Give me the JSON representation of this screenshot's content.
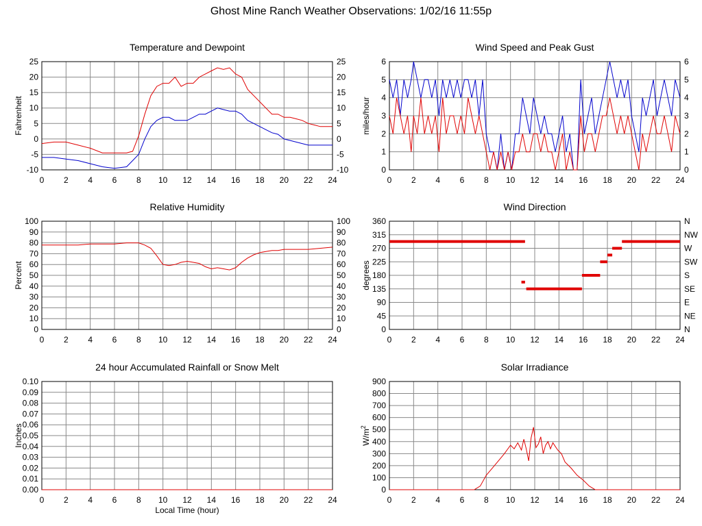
{
  "page": {
    "title": "Ghost Mine Ranch Weather Observations: 1/02/16 11:55p"
  },
  "colors": {
    "red": "#e00000",
    "blue": "#0000cc",
    "grid": "#888888",
    "frame": "#000000"
  },
  "chart_data": [
    {
      "id": "temperature",
      "type": "line",
      "title": "Temperature and Dewpoint",
      "xlabel": "",
      "ylabel": "Fahrenheit",
      "xlim": [
        0,
        24
      ],
      "ylim": [
        -10,
        25
      ],
      "xticks": [
        "0",
        "2",
        "4",
        "6",
        "8",
        "10",
        "12",
        "14",
        "16",
        "18",
        "20",
        "22",
        "24"
      ],
      "yticks": [
        "-10",
        "-5",
        "0",
        "5",
        "10",
        "15",
        "20",
        "25"
      ],
      "right_yticks": [
        "-10",
        "-5",
        "0",
        "5",
        "10",
        "15",
        "20",
        "25"
      ],
      "series": [
        {
          "color": "#e00000",
          "x": [
            0,
            1,
            2,
            3,
            4,
            5,
            6,
            7,
            7.5,
            8,
            8.5,
            9,
            9.5,
            10,
            10.5,
            11,
            11.5,
            12,
            12.5,
            13,
            13.5,
            14,
            14.5,
            15,
            15.5,
            16,
            16.5,
            17,
            17.5,
            18,
            18.5,
            19,
            19.5,
            20,
            20.5,
            21,
            21.5,
            22,
            22.5,
            23,
            23.5,
            24
          ],
          "values": [
            -1.5,
            -1,
            -1,
            -2,
            -3,
            -4.5,
            -4.5,
            -4.5,
            -4,
            1,
            8,
            14,
            17,
            18,
            18,
            20,
            17,
            18,
            18,
            20,
            21,
            22,
            23,
            22.5,
            23,
            21,
            20,
            16,
            14,
            12,
            10,
            8,
            8,
            7,
            7,
            6.5,
            6,
            5,
            4.5,
            4,
            4,
            4
          ]
        },
        {
          "color": "#0000cc",
          "x": [
            0,
            1,
            2,
            3,
            4,
            5,
            6,
            7,
            7.5,
            8,
            8.5,
            9,
            9.5,
            10,
            10.5,
            11,
            11.5,
            12,
            12.5,
            13,
            13.5,
            14,
            14.5,
            15,
            15.5,
            16,
            16.5,
            17,
            17.5,
            18,
            18.5,
            19,
            19.5,
            20,
            20.5,
            21,
            21.5,
            22,
            22.5,
            23,
            23.5,
            24
          ],
          "values": [
            -6,
            -6,
            -6.5,
            -7,
            -8,
            -9,
            -9.5,
            -9,
            -7,
            -5,
            0,
            4,
            6,
            7,
            7,
            6,
            6,
            6,
            7,
            8,
            8,
            9,
            10,
            9.5,
            9,
            9,
            8,
            6,
            5,
            4,
            3,
            2,
            1.5,
            0,
            -0.5,
            -1,
            -1.5,
            -2,
            -2,
            -2,
            -2,
            -2
          ]
        }
      ]
    },
    {
      "id": "wind-speed",
      "type": "line",
      "title": "Wind Speed and Peak Gust",
      "xlabel": "",
      "ylabel": "miles/hour",
      "xlim": [
        0,
        24
      ],
      "ylim": [
        0,
        6
      ],
      "xticks": [
        "0",
        "2",
        "4",
        "6",
        "8",
        "10",
        "12",
        "14",
        "16",
        "18",
        "20",
        "22",
        "24"
      ],
      "yticks": [
        "0",
        "1",
        "2",
        "3",
        "4",
        "5",
        "6"
      ],
      "right_yticks": [
        "0",
        "1",
        "2",
        "3",
        "4",
        "5",
        "6"
      ],
      "series": [
        {
          "color": "#0000cc",
          "x": [
            0,
            0.3,
            0.6,
            0.9,
            1.2,
            1.5,
            1.8,
            2,
            2.3,
            2.6,
            2.9,
            3.2,
            3.5,
            3.8,
            4.1,
            4.4,
            4.7,
            5,
            5.3,
            5.6,
            5.9,
            6.2,
            6.5,
            6.8,
            7.1,
            7.4,
            7.7,
            8,
            8.3,
            8.6,
            8.9,
            9.2,
            9.5,
            9.8,
            10.1,
            10.4,
            10.7,
            11,
            11.3,
            11.6,
            11.9,
            12.2,
            12.5,
            12.8,
            13.1,
            13.4,
            13.7,
            14,
            14.3,
            14.6,
            14.9,
            15.2,
            15.5,
            15.8,
            16.1,
            16.4,
            16.7,
            17,
            17.3,
            17.6,
            17.9,
            18.2,
            18.5,
            18.8,
            19.1,
            19.4,
            19.7,
            20,
            20.3,
            20.6,
            20.9,
            21.2,
            21.5,
            21.8,
            22.1,
            22.4,
            22.7,
            23,
            23.3,
            23.6,
            24
          ],
          "values": [
            5,
            4,
            5,
            3,
            5,
            4,
            5,
            6,
            5,
            4,
            5,
            5,
            4,
            5,
            3,
            5,
            4,
            5,
            4,
            5,
            4,
            5,
            5,
            4,
            5,
            3,
            5,
            2,
            1,
            1,
            0,
            2,
            0,
            1,
            0,
            2,
            2,
            4,
            3,
            2,
            4,
            3,
            2,
            3,
            2,
            2,
            1,
            2,
            3,
            1,
            2,
            0,
            0,
            5,
            2,
            3,
            4,
            2,
            3,
            4,
            5,
            6,
            5,
            4,
            5,
            4,
            5,
            3,
            2,
            1,
            4,
            3,
            4,
            5,
            3,
            4,
            5,
            4,
            3,
            5,
            4
          ]
        },
        {
          "color": "#e00000",
          "x": [
            0,
            0.3,
            0.6,
            0.9,
            1.2,
            1.5,
            1.8,
            2,
            2.3,
            2.6,
            2.9,
            3.2,
            3.5,
            3.8,
            4.1,
            4.4,
            4.7,
            5,
            5.3,
            5.6,
            5.9,
            6.2,
            6.5,
            6.8,
            7.1,
            7.4,
            7.7,
            8,
            8.3,
            8.6,
            8.9,
            9.2,
            9.5,
            9.8,
            10.1,
            10.4,
            10.7,
            11,
            11.3,
            11.6,
            11.9,
            12.2,
            12.5,
            12.8,
            13.1,
            13.4,
            13.7,
            14,
            14.3,
            14.6,
            14.9,
            15.2,
            15.5,
            15.8,
            16.1,
            16.4,
            16.7,
            17,
            17.3,
            17.6,
            17.9,
            18.2,
            18.5,
            18.8,
            19.1,
            19.4,
            19.7,
            20,
            20.3,
            20.6,
            20.9,
            21.2,
            21.5,
            21.8,
            22.1,
            22.4,
            22.7,
            23,
            23.3,
            23.6,
            24
          ],
          "values": [
            3,
            2,
            4,
            3,
            2,
            3,
            1,
            3,
            2,
            4,
            2,
            3,
            2,
            3,
            1,
            4,
            2,
            3,
            3,
            2,
            3,
            2,
            4,
            3,
            2,
            3,
            2,
            1,
            0,
            1,
            0,
            1,
            0,
            1,
            0,
            1,
            1,
            2,
            1,
            1,
            2,
            2,
            1,
            2,
            1,
            1,
            0,
            1,
            2,
            0,
            1,
            0,
            0,
            3,
            1,
            2,
            2,
            1,
            2,
            3,
            3,
            4,
            3,
            2,
            3,
            2,
            3,
            2,
            1,
            0,
            2,
            1,
            2,
            3,
            2,
            2,
            3,
            2,
            1,
            3,
            2
          ]
        }
      ]
    },
    {
      "id": "humidity",
      "type": "line",
      "title": "Relative Humidity",
      "xlabel": "",
      "ylabel": "Percent",
      "xlim": [
        0,
        24
      ],
      "ylim": [
        0,
        100
      ],
      "xticks": [
        "0",
        "2",
        "4",
        "6",
        "8",
        "10",
        "12",
        "14",
        "16",
        "18",
        "20",
        "22",
        "24"
      ],
      "yticks": [
        "0",
        "10",
        "20",
        "30",
        "40",
        "50",
        "60",
        "70",
        "80",
        "90",
        "100"
      ],
      "right_yticks": [
        "0",
        "10",
        "20",
        "30",
        "40",
        "50",
        "60",
        "70",
        "80",
        "90",
        "100"
      ],
      "series": [
        {
          "color": "#e00000",
          "x": [
            0,
            1,
            2,
            3,
            4,
            5,
            6,
            7,
            8,
            8.5,
            9,
            9.5,
            10,
            10.5,
            11,
            11.5,
            12,
            12.5,
            13,
            13.5,
            14,
            14.5,
            15,
            15.5,
            16,
            16.5,
            17,
            17.5,
            18,
            18.5,
            19,
            19.5,
            20,
            21,
            22,
            23,
            24
          ],
          "values": [
            78,
            78,
            78,
            78,
            79,
            79,
            79,
            80,
            80,
            78,
            75,
            68,
            60,
            59,
            60,
            62,
            63,
            62,
            61,
            58,
            56,
            57,
            56,
            55,
            57,
            62,
            66,
            69,
            71,
            72,
            73,
            73,
            74,
            74,
            74,
            75,
            76
          ]
        }
      ]
    },
    {
      "id": "wind-direction",
      "type": "scatter",
      "title": "Wind Direction",
      "xlabel": "",
      "ylabel": "degrees",
      "xlim": [
        0,
        24
      ],
      "ylim": [
        0,
        360
      ],
      "xticks": [
        "0",
        "2",
        "4",
        "6",
        "8",
        "10",
        "12",
        "14",
        "16",
        "18",
        "20",
        "22",
        "24"
      ],
      "yticks": [
        "0",
        "45",
        "90",
        "135",
        "180",
        "225",
        "270",
        "315",
        "360"
      ],
      "right_yticks": [
        "N",
        "NE",
        "E",
        "SE",
        "S",
        "SW",
        "W",
        "NW",
        "N"
      ],
      "segments": [
        {
          "x0": 0,
          "x1": 11.2,
          "y": 292.5
        },
        {
          "x0": 10.9,
          "x1": 11.2,
          "y": 157.5
        },
        {
          "x0": 11.3,
          "x1": 15.9,
          "y": 135
        },
        {
          "x0": 15.9,
          "x1": 17.4,
          "y": 180
        },
        {
          "x0": 17.4,
          "x1": 18.0,
          "y": 225
        },
        {
          "x0": 18.0,
          "x1": 18.4,
          "y": 247.5
        },
        {
          "x0": 18.4,
          "x1": 19.2,
          "y": 270
        },
        {
          "x0": 19.2,
          "x1": 24,
          "y": 292.5
        }
      ]
    },
    {
      "id": "rainfall",
      "type": "line",
      "title": "24 hour Accumulated Rainfall or Snow Melt",
      "xlabel": "Local Time (hour)",
      "ylabel": "Inches",
      "xlim": [
        0,
        24
      ],
      "ylim": [
        0,
        0.1
      ],
      "xticks": [
        "0",
        "2",
        "4",
        "6",
        "8",
        "10",
        "12",
        "14",
        "16",
        "18",
        "20",
        "22",
        "24"
      ],
      "yticks": [
        "0.00",
        "0.01",
        "0.02",
        "0.03",
        "0.04",
        "0.05",
        "0.06",
        "0.07",
        "0.08",
        "0.09",
        "0.10"
      ],
      "right_yticks": [],
      "series": [
        {
          "color": "#e00000",
          "x": [
            0,
            24
          ],
          "values": [
            0,
            0
          ]
        }
      ]
    },
    {
      "id": "solar",
      "type": "line",
      "title": "Solar Irradiance",
      "xlabel": "",
      "ylabel": "W/m",
      "ylabel_sup": "2",
      "xlim": [
        0,
        24
      ],
      "ylim": [
        0,
        900
      ],
      "xticks": [
        "0",
        "2",
        "4",
        "6",
        "8",
        "10",
        "12",
        "14",
        "16",
        "18",
        "20",
        "22",
        "24"
      ],
      "yticks": [
        "0",
        "100",
        "200",
        "300",
        "400",
        "500",
        "600",
        "700",
        "800",
        "900"
      ],
      "right_yticks": [],
      "series": [
        {
          "color": "#e00000",
          "x": [
            0,
            7,
            7.5,
            8,
            8.5,
            9,
            9.5,
            10,
            10.3,
            10.6,
            10.9,
            11.1,
            11.3,
            11.5,
            11.7,
            11.9,
            12.1,
            12.3,
            12.5,
            12.7,
            12.9,
            13.1,
            13.3,
            13.5,
            13.7,
            13.9,
            14.2,
            14.5,
            15,
            15.5,
            16,
            16.5,
            17,
            24
          ],
          "values": [
            0,
            0,
            30,
            120,
            180,
            240,
            300,
            370,
            340,
            390,
            330,
            420,
            340,
            240,
            430,
            520,
            350,
            380,
            440,
            300,
            370,
            400,
            340,
            390,
            360,
            330,
            300,
            230,
            180,
            120,
            80,
            30,
            0,
            0
          ]
        }
      ]
    }
  ]
}
